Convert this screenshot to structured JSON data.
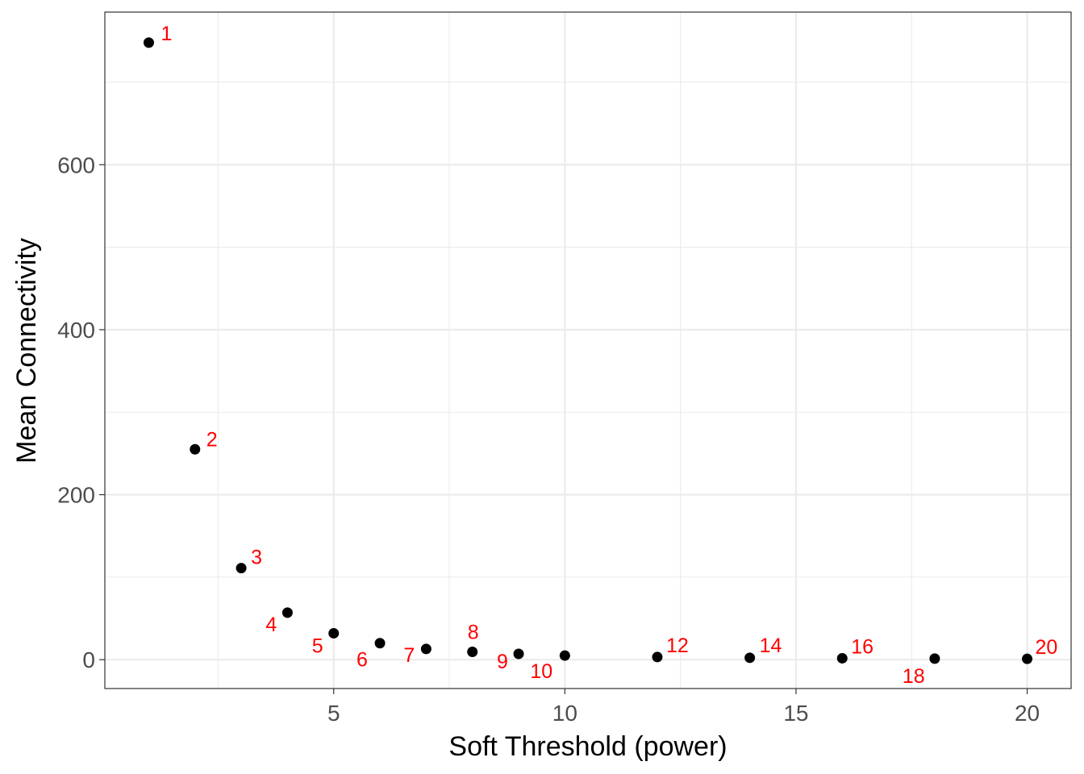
{
  "chart_data": {
    "type": "scatter",
    "title": "",
    "xlabel": "Soft Threshold (power)",
    "ylabel": "Mean Connectivity",
    "xlim": [
      0.05,
      20.95
    ],
    "ylim": [
      -35,
      785
    ],
    "x_ticks": [
      5,
      10,
      15,
      20
    ],
    "x_tick_labels": [
      "5",
      "10",
      "15",
      "20"
    ],
    "y_ticks": [
      0,
      200,
      400,
      600
    ],
    "y_tick_labels": [
      "0",
      "200",
      "400",
      "600"
    ],
    "grid": true,
    "legend": false,
    "colors": {
      "point": "#000000",
      "label": "#ff0000",
      "grid": "#ebebeb",
      "panel_border": "#333333"
    },
    "points": [
      {
        "x": 1,
        "y": 748,
        "label": "1"
      },
      {
        "x": 2,
        "y": 255,
        "label": "2"
      },
      {
        "x": 3,
        "y": 111,
        "label": "3"
      },
      {
        "x": 4,
        "y": 57,
        "label": "4"
      },
      {
        "x": 5,
        "y": 32,
        "label": "5"
      },
      {
        "x": 6,
        "y": 20,
        "label": "6"
      },
      {
        "x": 7,
        "y": 13,
        "label": "7"
      },
      {
        "x": 8,
        "y": 9.5,
        "label": "8"
      },
      {
        "x": 9,
        "y": 7,
        "label": "9"
      },
      {
        "x": 10,
        "y": 5,
        "label": "10"
      },
      {
        "x": 12,
        "y": 3.2,
        "label": "12"
      },
      {
        "x": 14,
        "y": 2.3,
        "label": "14"
      },
      {
        "x": 16,
        "y": 1.7,
        "label": "16"
      },
      {
        "x": 18,
        "y": 1.3,
        "label": "18"
      },
      {
        "x": 20,
        "y": 1.0,
        "label": "20"
      }
    ]
  }
}
